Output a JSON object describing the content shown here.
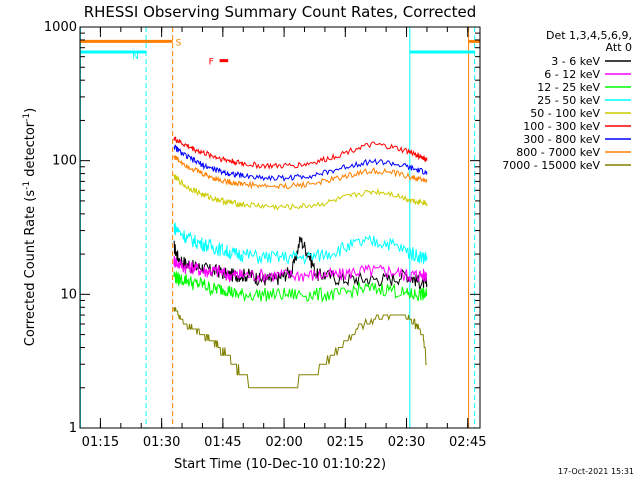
{
  "chart_data": {
    "type": "line",
    "title": "RHESSI Observing Summary Count Rates, Corrected",
    "xlabel": "Start Time (10-Dec-10 01:10:22)",
    "ylabel": "Corrected Count Rate (s",
    "ylabel_sup1": "-1",
    "ylabel_mid": " detector",
    "ylabel_sup2": "-1",
    "ylabel_end": ")",
    "yscale": "log",
    "ylim": [
      1,
      1000
    ],
    "xlim": [
      70,
      168
    ],
    "x_units": "minutes after 00:00 UT",
    "xticks": [
      {
        "value": 75,
        "label": "01:15"
      },
      {
        "value": 90,
        "label": "01:30"
      },
      {
        "value": 105,
        "label": "01:45"
      },
      {
        "value": 120,
        "label": "02:00"
      },
      {
        "value": 135,
        "label": "02:15"
      },
      {
        "value": 150,
        "label": "02:30"
      },
      {
        "value": 165,
        "label": "02:45"
      }
    ],
    "yticks": [
      {
        "value": 1,
        "label": "1"
      },
      {
        "value": 10,
        "label": "10"
      },
      {
        "value": 100,
        "label": "100"
      },
      {
        "value": 1000,
        "label": "1000"
      }
    ],
    "legend": {
      "header_line1": "Det 1,3,4,5,6,9,",
      "header_line2": "Att 0",
      "placement": "right"
    },
    "series": [
      {
        "name": "3 - 6 keV",
        "color": "#000000",
        "x": [
          93,
          94,
          96,
          98,
          100,
          102,
          104,
          106,
          108,
          110,
          112,
          114,
          116,
          118,
          120,
          122,
          124,
          126,
          128,
          130,
          134,
          138,
          142,
          146,
          150,
          152,
          154,
          155
        ],
        "y": [
          23,
          19,
          17,
          16,
          16,
          15,
          15,
          14,
          14,
          14,
          14,
          13,
          13,
          13,
          14,
          15,
          26,
          20,
          14,
          14,
          13,
          13,
          13,
          13,
          14,
          13,
          12,
          12
        ]
      },
      {
        "name": "6 - 12 keV",
        "color": "#ff00ff",
        "x": [
          93,
          94,
          96,
          98,
          100,
          102,
          104,
          106,
          108,
          110,
          114,
          118,
          122,
          126,
          130,
          134,
          138,
          142,
          146,
          150,
          152,
          154,
          155
        ],
        "y": [
          18,
          17,
          16,
          16,
          15,
          15,
          15,
          14,
          14,
          14,
          14,
          14,
          14,
          14,
          14,
          14,
          15,
          15,
          15,
          14,
          14,
          14,
          14
        ]
      },
      {
        "name": "12 - 25 keV",
        "color": "#00ff00",
        "x": [
          93,
          94,
          96,
          98,
          100,
          102,
          104,
          106,
          108,
          110,
          114,
          118,
          122,
          126,
          130,
          134,
          138,
          142,
          146,
          150,
          152,
          154,
          155
        ],
        "y": [
          14,
          13,
          13,
          12,
          12,
          11,
          11,
          11,
          10,
          10,
          10,
          10,
          10,
          10,
          10,
          10,
          11,
          11,
          11,
          10,
          10,
          10,
          10
        ]
      },
      {
        "name": "25 - 50 keV",
        "color": "#00ffff",
        "x": [
          93,
          94,
          96,
          98,
          100,
          102,
          104,
          106,
          108,
          110,
          114,
          118,
          122,
          126,
          130,
          134,
          138,
          142,
          146,
          150,
          152,
          154,
          155
        ],
        "y": [
          32,
          30,
          27,
          25,
          24,
          23,
          22,
          21,
          20,
          20,
          19,
          19,
          19,
          19,
          20,
          22,
          24,
          25,
          24,
          21,
          20,
          19,
          19
        ]
      },
      {
        "name": "50 - 100 keV",
        "color": "#cccc00",
        "x": [
          93,
          94,
          96,
          98,
          100,
          102,
          104,
          106,
          108,
          110,
          114,
          118,
          122,
          126,
          130,
          134,
          138,
          142,
          146,
          150,
          152,
          154,
          155
        ],
        "y": [
          76,
          72,
          64,
          60,
          56,
          53,
          51,
          49,
          48,
          47,
          46,
          45,
          45,
          46,
          48,
          52,
          56,
          59,
          57,
          52,
          50,
          49,
          48
        ]
      },
      {
        "name": "100 - 300 keV",
        "color": "#ff0000",
        "x": [
          93,
          94,
          96,
          98,
          100,
          102,
          104,
          106,
          108,
          110,
          114,
          118,
          122,
          126,
          130,
          134,
          138,
          142,
          146,
          150,
          152,
          154,
          155
        ],
        "y": [
          148,
          140,
          130,
          122,
          115,
          110,
          105,
          101,
          98,
          95,
          92,
          91,
          92,
          95,
          102,
          112,
          125,
          132,
          127,
          118,
          112,
          106,
          100
        ]
      },
      {
        "name": "300 - 800 keV",
        "color": "#0000ff",
        "x": [
          93,
          94,
          96,
          98,
          100,
          102,
          104,
          106,
          108,
          110,
          114,
          118,
          122,
          126,
          130,
          134,
          138,
          142,
          146,
          150,
          152,
          154,
          155
        ],
        "y": [
          128,
          120,
          108,
          100,
          93,
          88,
          84,
          81,
          79,
          77,
          75,
          74,
          75,
          77,
          81,
          88,
          95,
          99,
          96,
          90,
          86,
          83,
          80
        ]
      },
      {
        "name": "800 - 7000 keV",
        "color": "#ff8000",
        "x": [
          93,
          94,
          96,
          98,
          100,
          102,
          104,
          106,
          108,
          110,
          114,
          118,
          122,
          126,
          130,
          134,
          138,
          142,
          146,
          150,
          152,
          154,
          155
        ],
        "y": [
          108,
          102,
          93,
          86,
          80,
          76,
          72,
          70,
          68,
          67,
          65,
          64,
          65,
          67,
          70,
          75,
          81,
          84,
          82,
          77,
          74,
          72,
          70
        ]
      },
      {
        "name": "7000 - 15000 keV",
        "color": "#808000",
        "x": [
          93,
          94,
          96,
          98,
          100,
          102,
          104,
          106,
          108,
          110,
          114,
          118,
          122,
          126,
          130,
          134,
          138,
          142,
          146,
          150,
          152,
          154,
          155
        ],
        "y": [
          8,
          7,
          6,
          5.5,
          5,
          4.5,
          4,
          3.5,
          3,
          2.5,
          2,
          2,
          2,
          2.5,
          3,
          4,
          5.5,
          6.5,
          7,
          7,
          6,
          5,
          3
        ]
      }
    ],
    "vlines": [
      {
        "x": 70.1,
        "color": "#00ffff",
        "style": "solid"
      },
      {
        "x": 86.2,
        "color": "#00ffff",
        "style": "dashed"
      },
      {
        "x": 92.7,
        "color": "#ff8000",
        "style": "dashed"
      },
      {
        "x": 150.8,
        "color": "#00ffff",
        "style": "solid"
      },
      {
        "x": 165.2,
        "color": "#ff8000",
        "style": "solid"
      },
      {
        "x": 166.7,
        "color": "#00ffff",
        "style": "dashed"
      }
    ],
    "flags": [
      {
        "label": "N",
        "color": "#00ffff",
        "x_start": 70,
        "x_end": 86.2,
        "level": 650
      },
      {
        "label": "S",
        "color": "#ff8000",
        "x_start": 70,
        "x_end": 92.7,
        "level": 780
      },
      {
        "label": "",
        "color": "#00ffff",
        "x_start": 150.8,
        "x_end": 166.7,
        "level": 650
      },
      {
        "label": "",
        "color": "#ff8000",
        "x_start": 165.2,
        "x_end": 168,
        "level": 780
      },
      {
        "label": "F",
        "color": "#ff0000",
        "x_start": 104.2,
        "x_end": 106.3,
        "level": 560
      }
    ],
    "footer_date": "17-Oct-2021 15:31"
  }
}
